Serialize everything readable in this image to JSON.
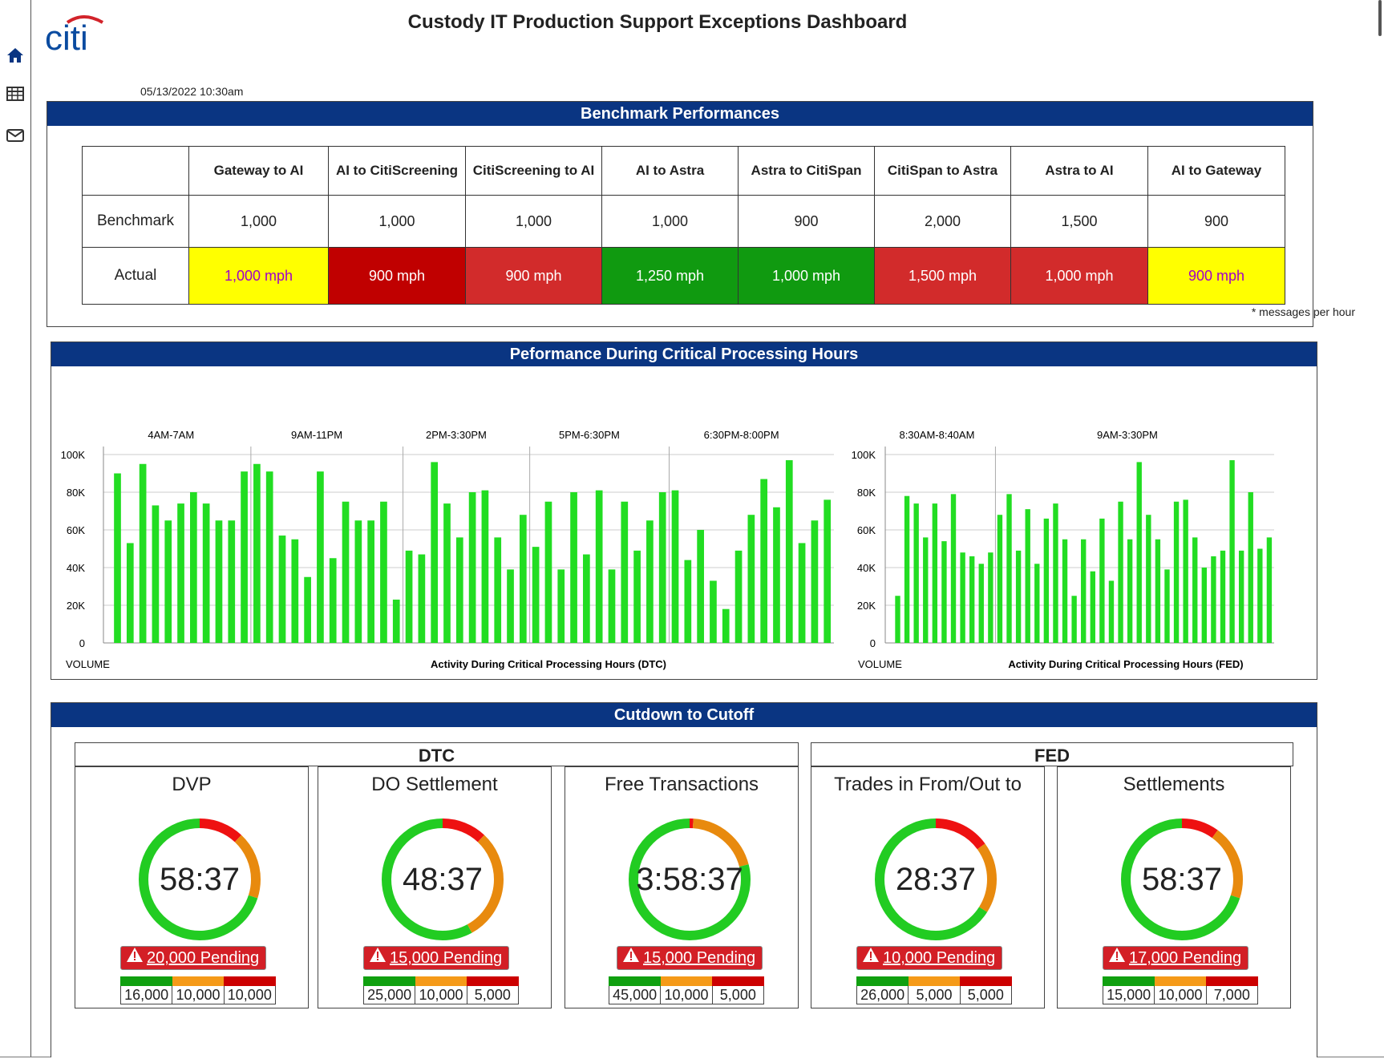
{
  "app": {
    "title": "Custody IT Production Support Exceptions Dashboard",
    "logo_text": "citi",
    "timestamp": "05/13/2022  10:30am"
  },
  "sidebar": {
    "items": [
      {
        "icon": "home-icon"
      },
      {
        "icon": "table-icon"
      },
      {
        "icon": "mail-icon"
      }
    ]
  },
  "colors": {
    "header_blue": "#0a3582",
    "bar_green": "#22dd22",
    "status_yellow": "#ffff00",
    "status_red": "#d22b2b",
    "status_dark_red": "#c00000",
    "status_green": "#109a10",
    "donut_green": "#22cc22",
    "donut_orange": "#e88a0e",
    "donut_red": "#ee1111"
  },
  "benchmark": {
    "title": "Benchmark Performances",
    "row_labels": {
      "benchmark": "Benchmark",
      "actual": "Actual"
    },
    "columns": [
      {
        "header": "Gateway to AI",
        "benchmark": "1,000",
        "actual": "1,000 mph",
        "status": "yellow"
      },
      {
        "header": "AI to CitiScreening",
        "benchmark": "1,000",
        "actual": "900 mph",
        "status": "dark_red"
      },
      {
        "header": "CitiScreening to AI",
        "benchmark": "1,000",
        "actual": "900 mph",
        "status": "red"
      },
      {
        "header": "AI to Astra",
        "benchmark": "1,000",
        "actual": "1,250 mph",
        "status": "green"
      },
      {
        "header": "Astra to CitiSpan",
        "benchmark": "900",
        "actual": "1,000 mph",
        "status": "green"
      },
      {
        "header": "CitiSpan to Astra",
        "benchmark": "2,000",
        "actual": "1,500 mph",
        "status": "red"
      },
      {
        "header": "Astra to AI",
        "benchmark": "1,500",
        "actual": "1,000 mph",
        "status": "red"
      },
      {
        "header": "AI to Gateway",
        "benchmark": "900",
        "actual": "900 mph",
        "status": "yellow"
      }
    ],
    "footnote": "* messages per hour"
  },
  "performance": {
    "title": "Peformance During Critical Processing Hours"
  },
  "chart_data": [
    {
      "type": "bar",
      "title": "Activity During Critical Processing Hours (DTC)",
      "ylabel": "VOLUME",
      "ylim": [
        0,
        100000
      ],
      "yticks": [
        "0",
        "20K",
        "40K",
        "60K",
        "80K",
        "100K"
      ],
      "grid": true,
      "sections": [
        {
          "label": "4AM-7AM",
          "values": [
            90000,
            53000,
            95000,
            73000,
            65000,
            74000,
            80000,
            74000,
            65000,
            65000,
            91000
          ]
        },
        {
          "label": "9AM-11PM",
          "values": [
            95000,
            91000,
            57000,
            55000,
            35000,
            91000,
            45000,
            75000,
            65000,
            65000,
            75000,
            23000
          ]
        },
        {
          "label": "2PM-3:30PM",
          "values": [
            49000,
            47000,
            96000,
            74000,
            56000,
            80000,
            81000,
            56000,
            39000,
            68000
          ]
        },
        {
          "label": "5PM-6:30PM",
          "values": [
            51000,
            75000,
            39000,
            80000,
            47000,
            81000,
            39000,
            75000,
            49000,
            65000,
            80000
          ]
        },
        {
          "label": "6:30PM-8:00PM",
          "values": [
            81000,
            44000,
            60000,
            33000,
            18000,
            49000,
            68000,
            87000,
            72000,
            97000,
            53000,
            65000,
            76000
          ]
        }
      ]
    },
    {
      "type": "bar",
      "title": "Activity During Critical Processing Hours (FED)",
      "ylabel": "VOLUME",
      "ylim": [
        0,
        100000
      ],
      "yticks": [
        "0",
        "20K",
        "40K",
        "60K",
        "80K",
        "100K"
      ],
      "grid": true,
      "sections": [
        {
          "label": "8:30AM-8:40AM",
          "values": [
            25000,
            78000,
            74000,
            56000,
            74000,
            54000,
            79000,
            48000,
            46000,
            42000,
            48000
          ]
        },
        {
          "label": "9AM-3:30PM",
          "values": [
            68000,
            79000,
            49000,
            71000,
            42000,
            66000,
            74000,
            55000,
            25000,
            55000,
            38000,
            66000,
            33000,
            75000,
            55000,
            96000,
            68000,
            55000,
            39000,
            75000,
            76000,
            56000,
            40000,
            46000,
            49000,
            97000,
            49000,
            80000,
            50000,
            56000
          ]
        }
      ]
    }
  ],
  "cutdown": {
    "title": "Cutdown to Cutoff",
    "groups": [
      {
        "label": "DTC"
      },
      {
        "label": "FED"
      }
    ],
    "cards": [
      {
        "title": "DVP",
        "time": "58:37",
        "pending": "20,000 Pending",
        "green_pct": 0.7,
        "orange_pct": 0.18,
        "red_pct": 0.12,
        "counts": [
          "16,000",
          "10,000",
          "10,000"
        ]
      },
      {
        "title": "DO Settlement",
        "time": "48:37",
        "pending": "15,000 Pending",
        "green_pct": 0.58,
        "orange_pct": 0.3,
        "red_pct": 0.12,
        "counts": [
          "25,000",
          "10,000",
          "5,000"
        ]
      },
      {
        "title": "Free Transactions",
        "time": "3:58:37",
        "pending": "15,000 Pending",
        "green_pct": 0.79,
        "orange_pct": 0.2,
        "red_pct": 0.01,
        "counts": [
          "45,000",
          "10,000",
          "5,000"
        ]
      },
      {
        "title": "Trades in From/Out to",
        "time": "28:37",
        "pending": "10,000 Pending",
        "green_pct": 0.66,
        "orange_pct": 0.19,
        "red_pct": 0.15,
        "counts": [
          "26,000",
          "5,000",
          "5,000"
        ]
      },
      {
        "title": "Settlements",
        "time": "58:37",
        "pending": "17,000 Pending",
        "green_pct": 0.7,
        "orange_pct": 0.2,
        "red_pct": 0.1,
        "counts": [
          "15,000",
          "10,000",
          "7,000"
        ]
      }
    ]
  }
}
